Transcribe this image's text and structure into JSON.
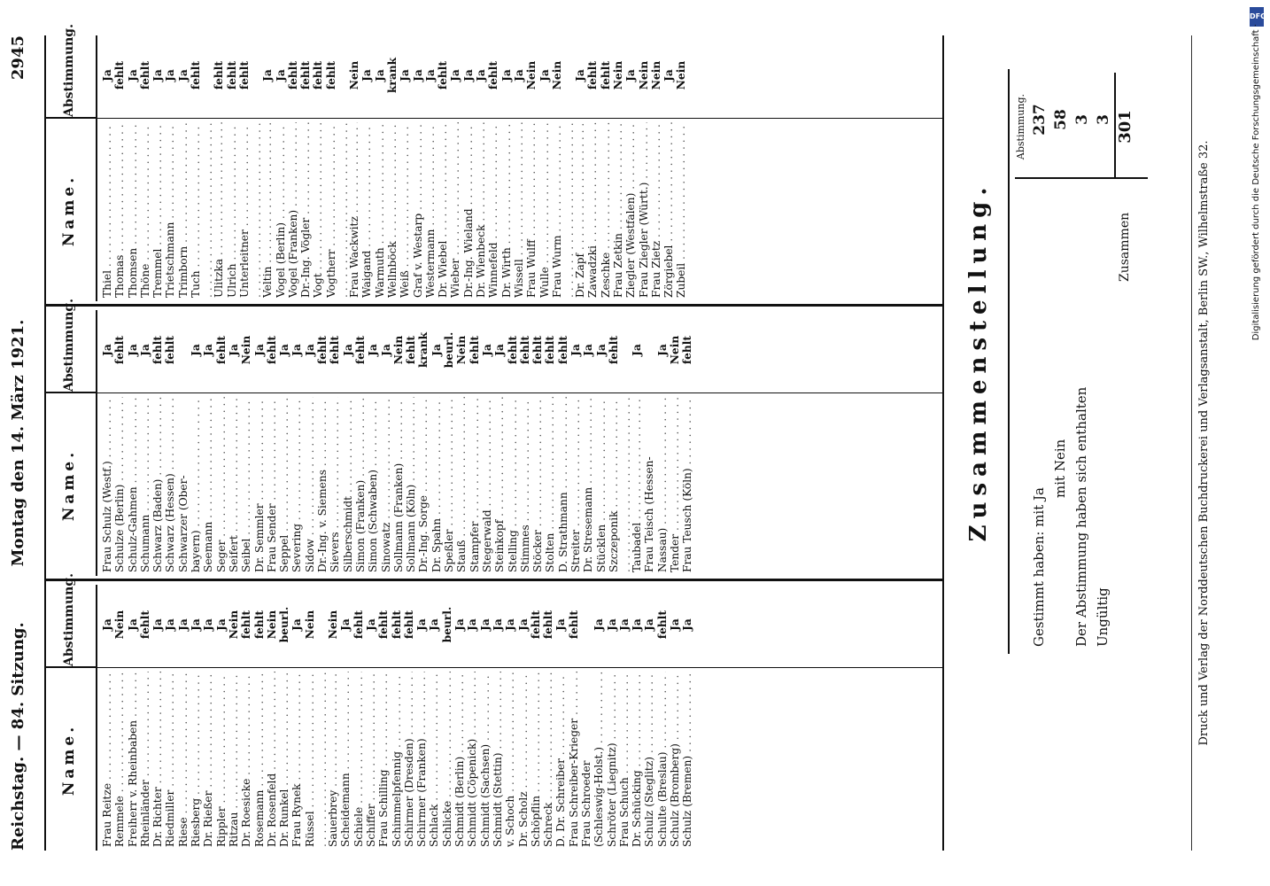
{
  "header": {
    "left": "Reichstag. — 84. Sitzung.",
    "center": "Montag den 14. März 1921.",
    "right": "2945"
  },
  "columns_header": {
    "name": "Name.",
    "vote": "Abstimmung."
  },
  "col1": [
    {
      "name": "Frau Reitze",
      "vote": "Ja"
    },
    {
      "name": "Remmele",
      "vote": "Nein"
    },
    {
      "name": "Freiherr v. Rheinbaben",
      "vote": "Ja"
    },
    {
      "name": "Rheinländer",
      "vote": "fehlt"
    },
    {
      "name": "Dr. Richter",
      "vote": "Ja"
    },
    {
      "name": "Riedmiller",
      "vote": "Ja"
    },
    {
      "name": "Riese",
      "vote": "Ja"
    },
    {
      "name": "Riesberg",
      "vote": "Ja"
    },
    {
      "name": "Dr. Rießer",
      "vote": "Ja"
    },
    {
      "name": "Rippler",
      "vote": "Ja"
    },
    {
      "name": "Ritzau",
      "vote": "Nein"
    },
    {
      "name": "Dr. Roesicke",
      "vote": "fehlt"
    },
    {
      "name": "Rosemann",
      "vote": "fehlt"
    },
    {
      "name": "Dr. Rosenfeld",
      "vote": "Nein"
    },
    {
      "name": "Dr. Runkel",
      "vote": "beurl."
    },
    {
      "name": "Frau Rynek",
      "vote": "Ja"
    },
    {
      "name": "Rüssel",
      "vote": "Nein"
    },
    {
      "name": "",
      "vote": ""
    },
    {
      "name": "Sauerbrey",
      "vote": "Nein"
    },
    {
      "name": "Scheidemann",
      "vote": "Ja"
    },
    {
      "name": "Schiele",
      "vote": "fehlt"
    },
    {
      "name": "Schiffer",
      "vote": "Ja"
    },
    {
      "name": "Frau Schilling",
      "vote": "fehlt"
    },
    {
      "name": "Schimmelpfennig",
      "vote": "fehlt"
    },
    {
      "name": "Schirmer (Dresden)",
      "vote": "fehlt"
    },
    {
      "name": "Schirmer (Franken)",
      "vote": "Ja"
    },
    {
      "name": "Schlack",
      "vote": "Ja"
    },
    {
      "name": "Schlicke",
      "vote": "beurl."
    },
    {
      "name": "Schmidt (Berlin)",
      "vote": "Ja"
    },
    {
      "name": "Schmidt (Cöpenick)",
      "vote": "Ja"
    },
    {
      "name": "Schmidt (Sachsen)",
      "vote": "Ja"
    },
    {
      "name": "Schmidt (Stettin)",
      "vote": "Ja"
    },
    {
      "name": "v. Schoch",
      "vote": "Ja"
    },
    {
      "name": "Dr. Scholz",
      "vote": "Ja"
    },
    {
      "name": "Schöpflin",
      "vote": "fehlt"
    },
    {
      "name": "Schreck",
      "vote": "fehlt"
    },
    {
      "name": "D. Dr. Schreiber",
      "vote": "Ja"
    },
    {
      "name": "Frau Schreiber-Krieger",
      "vote": "fehlt"
    },
    {
      "name": "Frau Schroeder",
      "vote": ""
    },
    {
      "name": "(Schleswig-Holst.)",
      "vote": "Ja"
    },
    {
      "name": "Schröter (Liegnitz)",
      "vote": "Ja"
    },
    {
      "name": "Frau Schuch",
      "vote": "Ja"
    },
    {
      "name": "Dr. Schücking",
      "vote": "Ja"
    },
    {
      "name": "Schulz (Steglitz)",
      "vote": "Ja"
    },
    {
      "name": "Schulte (Breslau)",
      "vote": "fehlt"
    },
    {
      "name": "Schulz (Bromberg)",
      "vote": "Ja"
    },
    {
      "name": "Schulz (Bremen)",
      "vote": "Ja"
    }
  ],
  "col2": [
    {
      "name": "Frau Schulz (Westf.)",
      "vote": "Ja"
    },
    {
      "name": "Schulze (Berlin)",
      "vote": "fehlt"
    },
    {
      "name": "Schulz-Gahmen",
      "vote": "Ja"
    },
    {
      "name": "Schumann",
      "vote": "Ja"
    },
    {
      "name": "Schwarz (Baden)",
      "vote": "fehlt"
    },
    {
      "name": "Schwarz (Hessen)",
      "vote": "fehlt"
    },
    {
      "name": "Schwarzer (Ober-",
      "vote": ""
    },
    {
      "name": "bayern)",
      "vote": "Ja"
    },
    {
      "name": "Seemann",
      "vote": "Ja"
    },
    {
      "name": "Seger",
      "vote": "fehlt"
    },
    {
      "name": "Seifert",
      "vote": "Ja"
    },
    {
      "name": "Seibel",
      "vote": "Nein"
    },
    {
      "name": "Dr. Semmler",
      "vote": "Ja"
    },
    {
      "name": "Frau Sender",
      "vote": "fehlt"
    },
    {
      "name": "Seppel",
      "vote": "Ja"
    },
    {
      "name": "Severing",
      "vote": "Ja"
    },
    {
      "name": "Sidow",
      "vote": "Ja"
    },
    {
      "name": "Dr.-Ing. v. Siemens",
      "vote": "fehlt"
    },
    {
      "name": "Sievers",
      "vote": "fehlt"
    },
    {
      "name": "Silberschmidt",
      "vote": "Ja"
    },
    {
      "name": "Simon (Franken)",
      "vote": "fehlt"
    },
    {
      "name": "Simon (Schwaben)",
      "vote": "Ja"
    },
    {
      "name": "Sinowatz",
      "vote": "Ja"
    },
    {
      "name": "Sollmann (Franken)",
      "vote": "Nein"
    },
    {
      "name": "Sollmann (Köln)",
      "vote": "fehlt"
    },
    {
      "name": "Dr.-Ing. Sorge",
      "vote": "krank"
    },
    {
      "name": "Dr. Spahn",
      "vote": "Ja"
    },
    {
      "name": "Speßler",
      "vote": "beurl."
    },
    {
      "name": "Stauß",
      "vote": "Nein"
    },
    {
      "name": "Stampfer",
      "vote": "fehlt"
    },
    {
      "name": "Stegerwald",
      "vote": "Ja"
    },
    {
      "name": "Steinkopf",
      "vote": "Ja"
    },
    {
      "name": "Stelling",
      "vote": "fehlt"
    },
    {
      "name": "Stimmes",
      "vote": "fehlt"
    },
    {
      "name": "Stöcker",
      "vote": "fehlt"
    },
    {
      "name": "Stolten",
      "vote": "fehlt"
    },
    {
      "name": "D. Strathmann",
      "vote": "fehlt"
    },
    {
      "name": "Streiter",
      "vote": "Ja"
    },
    {
      "name": "Dr. Stresemann",
      "vote": "Ja"
    },
    {
      "name": "Stücklen",
      "vote": "Ja"
    },
    {
      "name": "Szczeponik",
      "vote": "fehlt"
    },
    {
      "name": "",
      "vote": ""
    },
    {
      "name": "Taubadel",
      "vote": "Ja"
    },
    {
      "name": "Frau Teisch (Hessen-",
      "vote": ""
    },
    {
      "name": "Nassau)",
      "vote": "Ja"
    },
    {
      "name": "Tender",
      "vote": "Nein"
    },
    {
      "name": "Frau Teusch (Köln)",
      "vote": "fehlt"
    }
  ],
  "col3": [
    {
      "name": "Thiel",
      "vote": "Ja"
    },
    {
      "name": "Thomas",
      "vote": "fehlt"
    },
    {
      "name": "Thomsen",
      "vote": "Ja"
    },
    {
      "name": "Thöne",
      "vote": "fehlt"
    },
    {
      "name": "Tremmel",
      "vote": "Ja"
    },
    {
      "name": "Trietschmann",
      "vote": "Ja"
    },
    {
      "name": "Trimborn",
      "vote": "Ja"
    },
    {
      "name": "Tuch",
      "vote": "fehlt"
    },
    {
      "name": "",
      "vote": ""
    },
    {
      "name": "Ulitzka",
      "vote": "fehlt"
    },
    {
      "name": "Ulrich",
      "vote": "fehlt"
    },
    {
      "name": "Unterleitner",
      "vote": "fehlt"
    },
    {
      "name": "",
      "vote": ""
    },
    {
      "name": "Veltin",
      "vote": "Ja"
    },
    {
      "name": "Vogel (Berlin)",
      "vote": "Ja"
    },
    {
      "name": "Vogel (Franken)",
      "vote": "fehlt"
    },
    {
      "name": "Dr.-Ing. Vögler",
      "vote": "fehlt"
    },
    {
      "name": "Vogt",
      "vote": "fehlt"
    },
    {
      "name": "Vogtherr",
      "vote": "fehlt"
    },
    {
      "name": "",
      "vote": ""
    },
    {
      "name": "Frau Wackwitz",
      "vote": "Nein"
    },
    {
      "name": "Waigand",
      "vote": "Ja"
    },
    {
      "name": "Warmuth",
      "vote": "Ja"
    },
    {
      "name": "Wellnböck",
      "vote": "krank"
    },
    {
      "name": "Weiß",
      "vote": "Ja"
    },
    {
      "name": "Graf v. Westarp",
      "vote": "Ja"
    },
    {
      "name": "Westermann",
      "vote": "Ja"
    },
    {
      "name": "Dr. Wiebel",
      "vote": "fehlt"
    },
    {
      "name": "Wieber",
      "vote": "Ja"
    },
    {
      "name": "Dr.-Ing. Wieland",
      "vote": "Ja"
    },
    {
      "name": "Dr. Wienbeck",
      "vote": "Ja"
    },
    {
      "name": "Winnefeld",
      "vote": "fehlt"
    },
    {
      "name": "Dr. Wirth",
      "vote": "Ja"
    },
    {
      "name": "Wissell",
      "vote": "Ja"
    },
    {
      "name": "Frau Wulff",
      "vote": "Nein"
    },
    {
      "name": "Wulle",
      "vote": "Ja"
    },
    {
      "name": "Frau Wurm",
      "vote": "Nein"
    },
    {
      "name": "",
      "vote": ""
    },
    {
      "name": "Dr. Zapf",
      "vote": "Ja"
    },
    {
      "name": "Zawadzki",
      "vote": "fehlt"
    },
    {
      "name": "Zeschke",
      "vote": "fehlt"
    },
    {
      "name": "Frau Zetkin",
      "vote": "Nein"
    },
    {
      "name": "Ziegler (Westfalen)",
      "vote": "Ja"
    },
    {
      "name": "Frau Ziegler (Württ.)",
      "vote": "Nein"
    },
    {
      "name": "Frau Zietz",
      "vote": "Nein"
    },
    {
      "name": "Zörgiebel",
      "vote": "Ja"
    },
    {
      "name": "Zubeil",
      "vote": "Nein"
    }
  ],
  "summary": {
    "title": "Zusammenstellung.",
    "col_head": "Abstimmung.",
    "l1": "Gestimmt haben: mit Ja",
    "v1": "237",
    "l2": "mit Nein",
    "v2": "58",
    "l3": "Der Abstimmung haben sich enthalten",
    "v3": "3",
    "l4": "Ungültig",
    "v4": "3",
    "total_label": "Zusammen",
    "total": "301"
  },
  "imprint": "Druck und Verlag der Norddeutschen Buchdruckerei und Verlagsanstalt, Berlin SW., Wilhelmstraße 32.",
  "sidebar": {
    "text": "Digitalisierung gefördert durch die Deutsche Forschungsgemeinschaft ·",
    "logo": "DFG"
  }
}
